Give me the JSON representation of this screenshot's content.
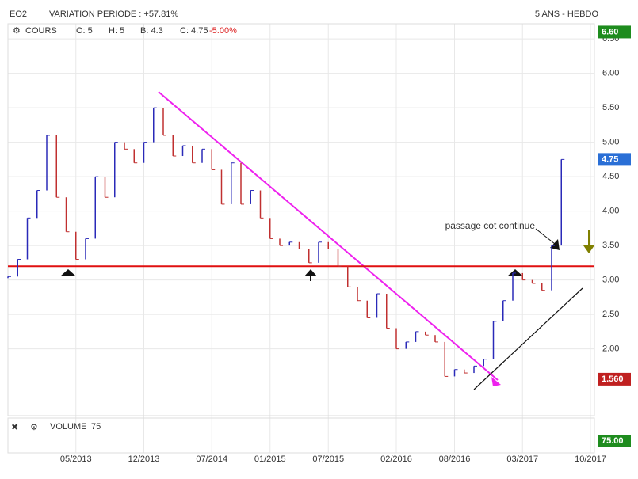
{
  "chart_data": {
    "type": "line",
    "title": "EO2",
    "subtitle": "VARIATION PERIODE : +57.81%",
    "period": "5 ANS - HEBDO",
    "series_label": "COURS",
    "stats": [
      "O: 5",
      "H: 5",
      "B: 4.3",
      "C: 4.75"
    ],
    "change": "-5.00%",
    "x": [
      "2012-10",
      "2012-11",
      "2012-12",
      "2013-01",
      "2013-02",
      "2013-03",
      "2013-04",
      "2013-05",
      "2013-06",
      "2013-07",
      "2013-08",
      "2013-09",
      "2013-10",
      "2013-11",
      "2013-12",
      "2014-01",
      "2014-02",
      "2014-03",
      "2014-04",
      "2014-05",
      "2014-06",
      "2014-07",
      "2014-08",
      "2014-09",
      "2014-10",
      "2014-11",
      "2014-12",
      "2015-01",
      "2015-02",
      "2015-03",
      "2015-04",
      "2015-05",
      "2015-06",
      "2015-07",
      "2015-08",
      "2015-09",
      "2015-10",
      "2015-11",
      "2015-12",
      "2016-01",
      "2016-02",
      "2016-03",
      "2016-04",
      "2016-05",
      "2016-06",
      "2016-07",
      "2016-08",
      "2016-09",
      "2016-10",
      "2016-11",
      "2016-12",
      "2017-01",
      "2017-02",
      "2017-03",
      "2017-04",
      "2017-05",
      "2017-06",
      "2017-07"
    ],
    "values": [
      3.05,
      3.3,
      3.9,
      4.3,
      5.1,
      4.2,
      3.7,
      3.3,
      3.6,
      4.5,
      4.2,
      5.0,
      4.9,
      4.7,
      5.0,
      5.5,
      5.1,
      4.8,
      4.95,
      4.7,
      4.9,
      4.6,
      4.1,
      4.7,
      4.1,
      4.3,
      3.9,
      3.6,
      3.5,
      3.55,
      3.45,
      3.25,
      3.55,
      3.45,
      3.2,
      2.9,
      2.7,
      2.45,
      2.8,
      2.3,
      2.0,
      2.1,
      2.25,
      2.2,
      2.1,
      1.6,
      1.7,
      1.65,
      1.75,
      1.85,
      2.4,
      2.7,
      3.1,
      3.0,
      2.95,
      2.85,
      3.5,
      4.75
    ],
    "up_color": "#2a2ab8",
    "down_color": "#c03030",
    "xlim": [
      "2012-10",
      "2017-10"
    ],
    "xticks": [
      {
        "value": "2013-05",
        "label": "05/2013"
      },
      {
        "value": "2013-12",
        "label": "12/2013"
      },
      {
        "value": "2014-07",
        "label": "07/2014"
      },
      {
        "value": "2015-01",
        "label": "01/2015"
      },
      {
        "value": "2015-07",
        "label": "07/2015"
      },
      {
        "value": "2016-02",
        "label": "02/2016"
      },
      {
        "value": "2016-08",
        "label": "08/2016"
      },
      {
        "value": "2017-03",
        "label": "03/2017"
      },
      {
        "value": "2017-10",
        "label": "10/2017"
      }
    ],
    "ylim": [
      1.03,
      6.72
    ],
    "yticks": [
      {
        "value": 2,
        "label": "2.00"
      },
      {
        "value": 2.5,
        "label": "2.50"
      },
      {
        "value": 3,
        "label": "3.00"
      },
      {
        "value": 3.5,
        "label": "3.50"
      },
      {
        "value": 4,
        "label": "4.00"
      },
      {
        "value": 4.5,
        "label": "4.50"
      },
      {
        "value": 5,
        "label": "5.00"
      },
      {
        "value": 5.5,
        "label": "5.50"
      },
      {
        "value": 6,
        "label": "6.00"
      },
      {
        "value": 6.5,
        "label": "6.50"
      }
    ],
    "grid": true,
    "support_level": 3.2,
    "price_boxes": [
      {
        "value": 6.6,
        "label": "6.60",
        "color": "#1e8c1e"
      },
      {
        "value": 4.75,
        "label": "4.75",
        "color": "#2a6fd6"
      },
      {
        "value": 1.56,
        "label": "1.560",
        "color": "#c02020"
      }
    ],
    "annotation": "passage cot continue",
    "volume_label": "VOLUME",
    "volume": 75,
    "volume_box": {
      "value": 75,
      "label": "75.00"
    }
  }
}
